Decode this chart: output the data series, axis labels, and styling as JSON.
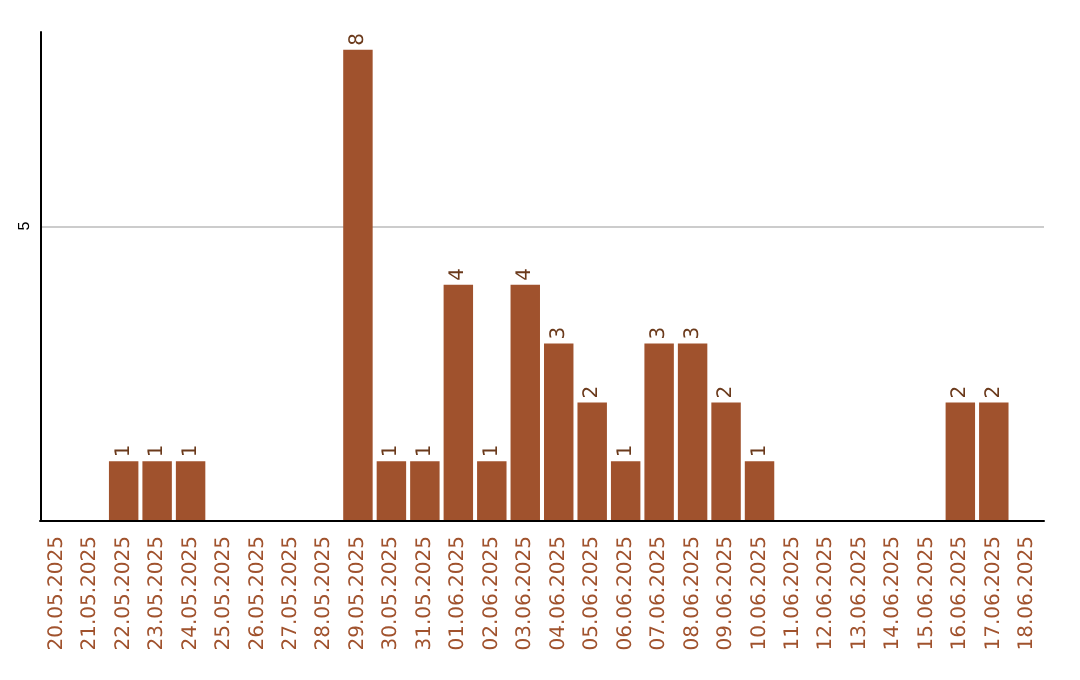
{
  "chart_data": {
    "type": "bar",
    "categories": [
      "20.05.2025",
      "21.05.2025",
      "22.05.2025",
      "23.05.2025",
      "24.05.2025",
      "25.05.2025",
      "26.05.2025",
      "27.05.2025",
      "28.05.2025",
      "29.05.2025",
      "30.05.2025",
      "31.05.2025",
      "01.06.2025",
      "02.06.2025",
      "03.06.2025",
      "04.06.2025",
      "05.06.2025",
      "06.06.2025",
      "07.06.2025",
      "08.06.2025",
      "09.06.2025",
      "10.06.2025",
      "11.06.2025",
      "12.06.2025",
      "13.06.2025",
      "14.06.2025",
      "15.06.2025",
      "16.06.2025",
      "17.06.2025",
      "18.06.2025"
    ],
    "values": [
      0,
      0,
      1,
      1,
      1,
      0,
      0,
      0,
      0,
      8,
      1,
      1,
      4,
      1,
      4,
      3,
      2,
      1,
      3,
      3,
      2,
      1,
      0,
      0,
      0,
      0,
      0,
      2,
      2,
      0
    ],
    "value_labels": [
      null,
      null,
      "1",
      "1",
      "1",
      null,
      null,
      null,
      null,
      "8",
      "1",
      "1",
      "4",
      "1",
      "4",
      "3",
      "2",
      "1",
      "3",
      "3",
      "2",
      "1",
      null,
      null,
      null,
      null,
      null,
      "2",
      "2",
      null
    ],
    "color": "#a0522d",
    "ylim": [
      0,
      8.3
    ],
    "yticks": [
      5
    ],
    "grid": "y"
  }
}
